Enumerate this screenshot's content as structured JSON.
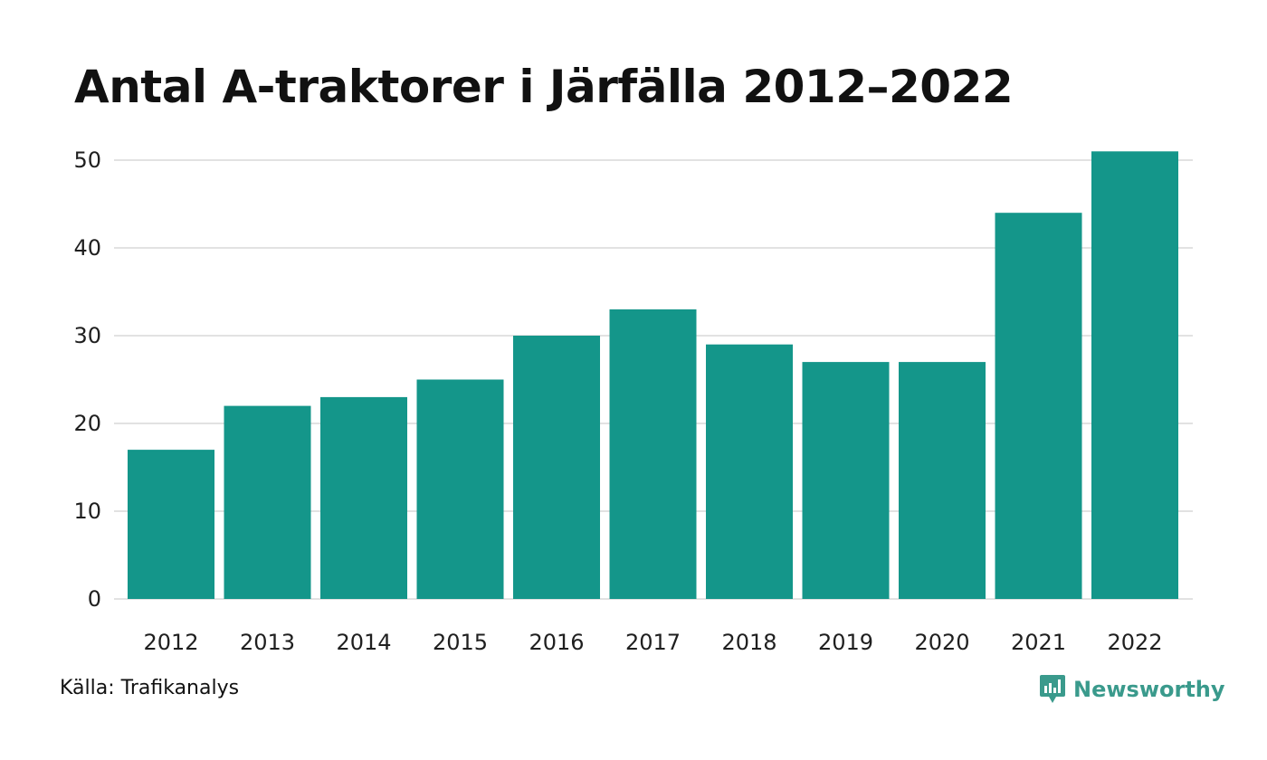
{
  "chart_data": {
    "type": "bar",
    "title": "Antal A-traktorer i Järfälla 2012–2022",
    "xlabel": "",
    "ylabel": "",
    "categories": [
      "2012",
      "2013",
      "2014",
      "2015",
      "2016",
      "2017",
      "2018",
      "2019",
      "2020",
      "2021",
      "2022"
    ],
    "values": [
      17,
      22,
      23,
      25,
      30,
      33,
      29,
      27,
      27,
      44,
      51
    ],
    "ylim": [
      0,
      50
    ],
    "yticks": [
      0,
      10,
      20,
      30,
      40,
      50
    ],
    "grid": true,
    "legend": "none",
    "bar_color": "#14968a",
    "grid_color": "#e2e2e2"
  },
  "footer": {
    "source": "Källa: Trafikanalys",
    "brand": "Newsworthy",
    "brand_color": "#3a9a8c",
    "brand_icon": "newsworthy-logo-icon"
  }
}
